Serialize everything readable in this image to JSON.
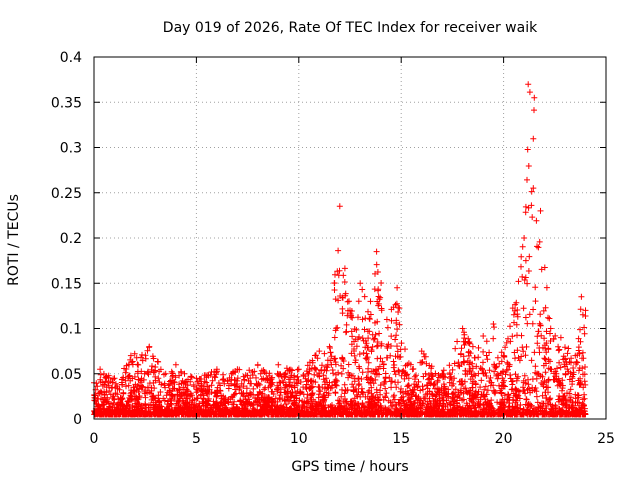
{
  "chart_data": {
    "type": "scatter",
    "title": "Day 019 of 2026, Rate Of TEC Index for receiver waik",
    "xlabel": "GPS time / hours",
    "ylabel": "ROTI / TECUs",
    "xlim": [
      0,
      25
    ],
    "ylim": [
      0,
      0.4
    ],
    "xticks": [
      0,
      5,
      10,
      15,
      20,
      25
    ],
    "xtick_labels": [
      "0",
      "5",
      "10",
      "15",
      "20",
      "25"
    ],
    "yticks": [
      0,
      0.05,
      0.1,
      0.15,
      0.2,
      0.25,
      0.3,
      0.35,
      0.4
    ],
    "ytick_labels": [
      "0",
      "0.05",
      "0.1",
      "0.15",
      "0.2",
      "0.25",
      "0.3",
      "0.35",
      "0.4"
    ],
    "grid": true,
    "marker": "+",
    "series_color": "#ff0000",
    "series": [
      {
        "name": "ROTI",
        "envelope": [
          {
            "x": 0.0,
            "y": 0.04
          },
          {
            "x": 0.3,
            "y": 0.055
          },
          {
            "x": 1.0,
            "y": 0.045
          },
          {
            "x": 1.8,
            "y": 0.07
          },
          {
            "x": 2.7,
            "y": 0.08
          },
          {
            "x": 3.5,
            "y": 0.05
          },
          {
            "x": 4.0,
            "y": 0.06
          },
          {
            "x": 5.0,
            "y": 0.045
          },
          {
            "x": 6.0,
            "y": 0.055
          },
          {
            "x": 7.0,
            "y": 0.055
          },
          {
            "x": 8.0,
            "y": 0.06
          },
          {
            "x": 9.0,
            "y": 0.06
          },
          {
            "x": 10.0,
            "y": 0.055
          },
          {
            "x": 11.0,
            "y": 0.075
          },
          {
            "x": 11.5,
            "y": 0.08
          },
          {
            "x": 12.0,
            "y": 0.235
          },
          {
            "x": 12.5,
            "y": 0.12
          },
          {
            "x": 13.0,
            "y": 0.15
          },
          {
            "x": 13.5,
            "y": 0.13
          },
          {
            "x": 13.8,
            "y": 0.185
          },
          {
            "x": 14.3,
            "y": 0.11
          },
          {
            "x": 14.8,
            "y": 0.145
          },
          {
            "x": 15.3,
            "y": 0.06
          },
          {
            "x": 16.0,
            "y": 0.075
          },
          {
            "x": 17.0,
            "y": 0.05
          },
          {
            "x": 18.0,
            "y": 0.1
          },
          {
            "x": 18.5,
            "y": 0.08
          },
          {
            "x": 19.5,
            "y": 0.105
          },
          {
            "x": 20.0,
            "y": 0.07
          },
          {
            "x": 21.0,
            "y": 0.2
          },
          {
            "x": 21.2,
            "y": 0.37
          },
          {
            "x": 21.5,
            "y": 0.355
          },
          {
            "x": 21.8,
            "y": 0.23
          },
          {
            "x": 22.3,
            "y": 0.1
          },
          {
            "x": 22.8,
            "y": 0.09
          },
          {
            "x": 23.5,
            "y": 0.07
          },
          {
            "x": 23.8,
            "y": 0.135
          },
          {
            "x": 24.0,
            "y": 0.12
          }
        ],
        "floor": 0.005,
        "point_count": 4200
      }
    ]
  }
}
